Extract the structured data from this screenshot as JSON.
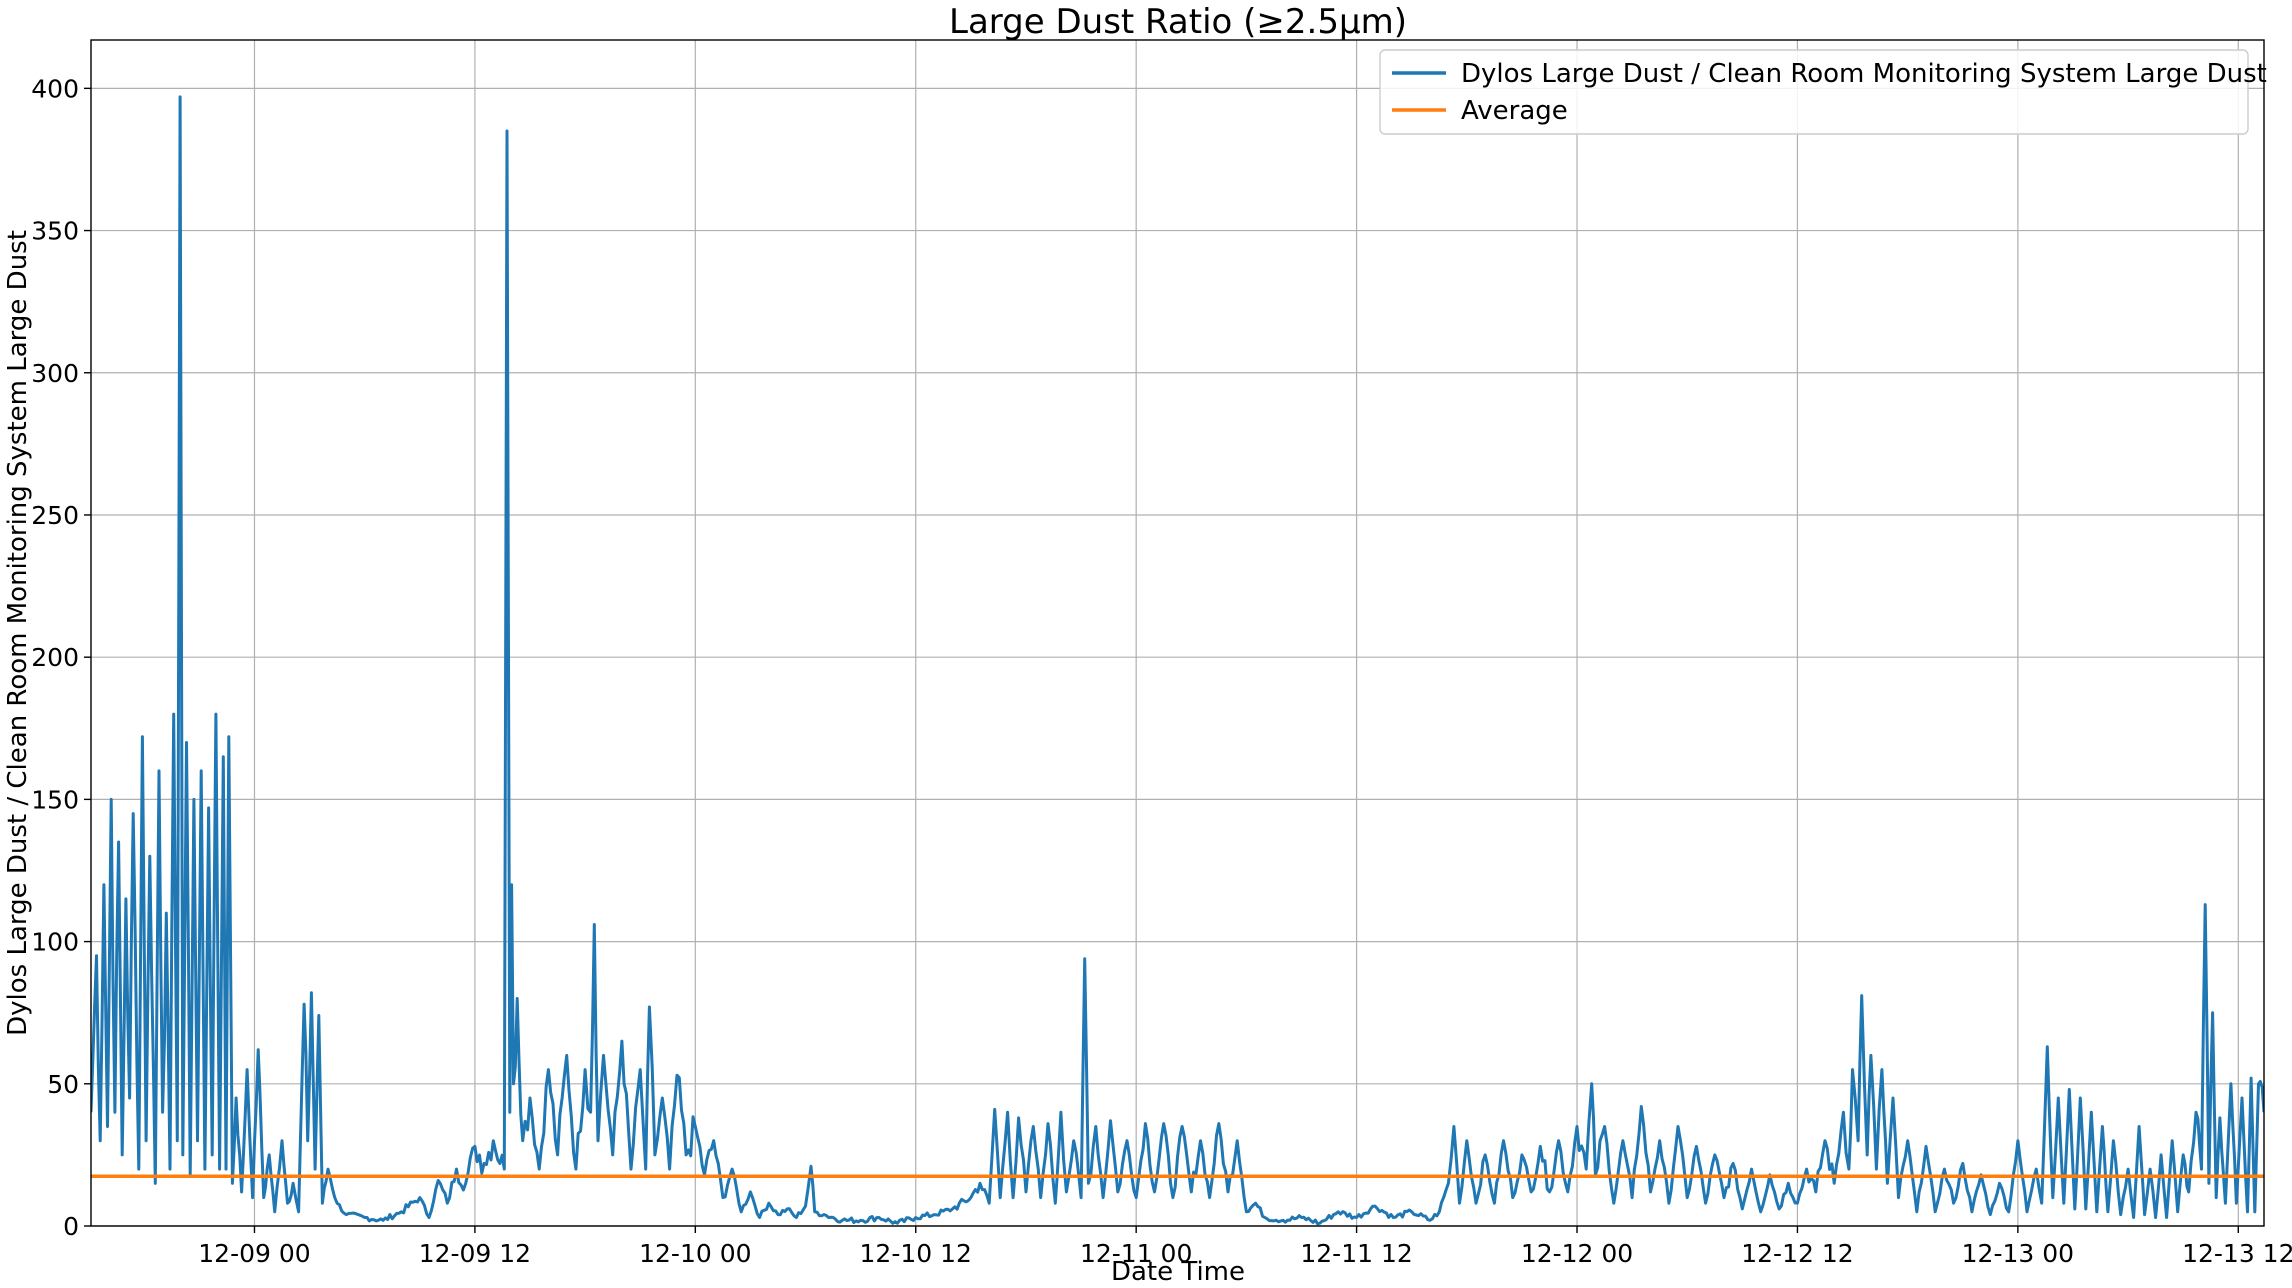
{
  "chart_data": {
    "type": "line",
    "title": "Large Dust Ratio (≥2.5µm)",
    "xlabel": "Date Time",
    "ylabel": "Dylos Large Dust / Clean Room Monitoring System Large Dust",
    "x_ticks": [
      "12-09 00",
      "12-09 12",
      "12-10 00",
      "12-10 12",
      "12-11 00",
      "12-11 12",
      "12-12 00",
      "12-12 12",
      "12-13 00",
      "12-13 12"
    ],
    "x_tick_hours": [
      24,
      36,
      48,
      60,
      72,
      84,
      96,
      108,
      120,
      132
    ],
    "y_ticks": [
      0,
      50,
      100,
      150,
      200,
      250,
      300,
      350,
      400
    ],
    "xlim_hours": [
      15.1,
      133.4
    ],
    "ylim": [
      0,
      417
    ],
    "grid": true,
    "legend_position": "top-right",
    "legend": [
      "Dylos Large Dust / Clean Room Monitoring System Large Dust",
      "Average"
    ],
    "colors": {
      "ratio": "#1f77b4",
      "average": "#ff7f0e"
    },
    "series": [
      {
        "name": "Dylos Large Dust / Clean Room Monitoring System Large Dust",
        "key_points": [
          [
            15.1,
            40
          ],
          [
            15.4,
            95
          ],
          [
            15.6,
            30
          ],
          [
            15.8,
            120
          ],
          [
            16.0,
            35
          ],
          [
            16.2,
            150
          ],
          [
            16.4,
            40
          ],
          [
            16.6,
            135
          ],
          [
            16.8,
            25
          ],
          [
            17.0,
            115
          ],
          [
            17.2,
            45
          ],
          [
            17.4,
            145
          ],
          [
            17.7,
            20
          ],
          [
            17.9,
            172
          ],
          [
            18.1,
            30
          ],
          [
            18.3,
            130
          ],
          [
            18.6,
            15
          ],
          [
            18.8,
            160
          ],
          [
            19.0,
            40
          ],
          [
            19.2,
            110
          ],
          [
            19.4,
            20
          ],
          [
            19.6,
            180
          ],
          [
            19.8,
            30
          ],
          [
            19.95,
            397
          ],
          [
            20.1,
            25
          ],
          [
            20.3,
            170
          ],
          [
            20.5,
            18
          ],
          [
            20.7,
            150
          ],
          [
            20.9,
            30
          ],
          [
            21.1,
            160
          ],
          [
            21.3,
            20
          ],
          [
            21.5,
            147
          ],
          [
            21.7,
            25
          ],
          [
            21.9,
            180
          ],
          [
            22.1,
            20
          ],
          [
            22.3,
            165
          ],
          [
            22.45,
            20
          ],
          [
            22.6,
            172
          ],
          [
            22.8,
            15
          ],
          [
            23.0,
            45
          ],
          [
            23.3,
            12
          ],
          [
            23.6,
            55
          ],
          [
            23.9,
            10
          ],
          [
            24.2,
            62
          ],
          [
            24.5,
            10
          ],
          [
            24.8,
            25
          ],
          [
            25.1,
            5
          ],
          [
            25.5,
            30
          ],
          [
            25.8,
            8
          ],
          [
            26.1,
            15
          ],
          [
            26.4,
            5
          ],
          [
            26.7,
            78
          ],
          [
            26.9,
            30
          ],
          [
            27.1,
            82
          ],
          [
            27.3,
            20
          ],
          [
            27.5,
            74
          ],
          [
            27.7,
            8
          ],
          [
            28.0,
            20
          ],
          [
            28.5,
            8
          ],
          [
            29.0,
            4
          ],
          [
            30.0,
            3
          ],
          [
            31.0,
            2
          ],
          [
            32.0,
            5
          ],
          [
            33.0,
            10
          ],
          [
            33.5,
            3
          ],
          [
            34.0,
            16
          ],
          [
            34.5,
            8
          ],
          [
            35.0,
            20
          ],
          [
            35.5,
            15
          ],
          [
            36.0,
            28
          ],
          [
            36.5,
            22
          ],
          [
            37.0,
            30
          ],
          [
            37.6,
            20
          ],
          [
            37.75,
            385
          ],
          [
            37.9,
            40
          ],
          [
            38.0,
            120
          ],
          [
            38.1,
            50
          ],
          [
            38.3,
            80
          ],
          [
            38.6,
            30
          ],
          [
            39.0,
            45
          ],
          [
            39.5,
            20
          ],
          [
            40.0,
            55
          ],
          [
            40.5,
            25
          ],
          [
            41.0,
            60
          ],
          [
            41.5,
            20
          ],
          [
            42.0,
            55
          ],
          [
            42.3,
            40
          ],
          [
            42.5,
            106
          ],
          [
            42.7,
            30
          ],
          [
            43.0,
            60
          ],
          [
            43.5,
            25
          ],
          [
            44.0,
            65
          ],
          [
            44.5,
            20
          ],
          [
            45.0,
            55
          ],
          [
            45.3,
            20
          ],
          [
            45.5,
            77
          ],
          [
            45.8,
            25
          ],
          [
            46.2,
            45
          ],
          [
            46.6,
            20
          ],
          [
            47.0,
            53
          ],
          [
            47.5,
            25
          ],
          [
            48.0,
            35
          ],
          [
            48.5,
            18
          ],
          [
            49.0,
            30
          ],
          [
            49.5,
            10
          ],
          [
            50.0,
            20
          ],
          [
            50.5,
            5
          ],
          [
            51.0,
            12
          ],
          [
            51.5,
            3
          ],
          [
            52.0,
            8
          ],
          [
            52.5,
            4
          ],
          [
            53.0,
            6
          ],
          [
            53.5,
            3
          ],
          [
            54.0,
            7
          ],
          [
            54.3,
            21
          ],
          [
            54.5,
            5
          ],
          [
            55.0,
            4
          ],
          [
            56.0,
            2
          ],
          [
            57.0,
            2
          ],
          [
            58.0,
            3
          ],
          [
            59.0,
            1
          ],
          [
            60.0,
            3
          ],
          [
            61.0,
            4
          ],
          [
            62.0,
            6
          ],
          [
            63.0,
            10
          ],
          [
            63.5,
            15
          ],
          [
            64.0,
            8
          ],
          [
            64.3,
            41
          ],
          [
            64.6,
            10
          ],
          [
            65.0,
            40
          ],
          [
            65.3,
            10
          ],
          [
            65.6,
            38
          ],
          [
            66.0,
            12
          ],
          [
            66.4,
            35
          ],
          [
            66.8,
            10
          ],
          [
            67.2,
            36
          ],
          [
            67.6,
            8
          ],
          [
            67.9,
            40
          ],
          [
            68.2,
            12
          ],
          [
            68.6,
            30
          ],
          [
            69.0,
            10
          ],
          [
            69.2,
            94
          ],
          [
            69.4,
            15
          ],
          [
            69.8,
            35
          ],
          [
            70.2,
            10
          ],
          [
            70.6,
            37
          ],
          [
            71.0,
            12
          ],
          [
            71.5,
            30
          ],
          [
            72.0,
            10
          ],
          [
            72.5,
            36
          ],
          [
            73.0,
            12
          ],
          [
            73.5,
            36
          ],
          [
            74.0,
            10
          ],
          [
            74.5,
            35
          ],
          [
            75.0,
            12
          ],
          [
            75.5,
            30
          ],
          [
            76.0,
            10
          ],
          [
            76.5,
            36
          ],
          [
            77.0,
            12
          ],
          [
            77.5,
            30
          ],
          [
            78.0,
            5
          ],
          [
            78.5,
            8
          ],
          [
            79.0,
            3
          ],
          [
            80.0,
            2
          ],
          [
            81.0,
            3
          ],
          [
            82.0,
            1
          ],
          [
            83.0,
            5
          ],
          [
            84.0,
            3
          ],
          [
            85.0,
            7
          ],
          [
            86.0,
            3
          ],
          [
            87.0,
            5
          ],
          [
            88.0,
            2
          ],
          [
            88.5,
            5
          ],
          [
            89.0,
            15
          ],
          [
            89.3,
            35
          ],
          [
            89.6,
            8
          ],
          [
            90.0,
            30
          ],
          [
            90.5,
            8
          ],
          [
            91.0,
            25
          ],
          [
            91.5,
            8
          ],
          [
            92.0,
            30
          ],
          [
            92.5,
            10
          ],
          [
            93.0,
            25
          ],
          [
            93.5,
            12
          ],
          [
            94.0,
            28
          ],
          [
            94.5,
            12
          ],
          [
            95.0,
            30
          ],
          [
            95.5,
            12
          ],
          [
            96.0,
            35
          ],
          [
            96.5,
            20
          ],
          [
            96.8,
            50
          ],
          [
            97.0,
            18
          ],
          [
            97.5,
            35
          ],
          [
            98.0,
            8
          ],
          [
            98.5,
            30
          ],
          [
            99.0,
            10
          ],
          [
            99.5,
            42
          ],
          [
            100.0,
            12
          ],
          [
            100.5,
            30
          ],
          [
            101.0,
            8
          ],
          [
            101.5,
            35
          ],
          [
            102.0,
            10
          ],
          [
            102.5,
            28
          ],
          [
            103.0,
            8
          ],
          [
            103.5,
            25
          ],
          [
            104.0,
            10
          ],
          [
            104.5,
            22
          ],
          [
            105.0,
            6
          ],
          [
            105.5,
            20
          ],
          [
            106.0,
            5
          ],
          [
            106.5,
            18
          ],
          [
            107.0,
            6
          ],
          [
            107.5,
            15
          ],
          [
            108.0,
            8
          ],
          [
            108.5,
            20
          ],
          [
            109.0,
            12
          ],
          [
            109.5,
            30
          ],
          [
            110.0,
            15
          ],
          [
            110.5,
            40
          ],
          [
            110.8,
            20
          ],
          [
            111.0,
            55
          ],
          [
            111.3,
            30
          ],
          [
            111.5,
            81
          ],
          [
            111.8,
            25
          ],
          [
            112.0,
            60
          ],
          [
            112.3,
            20
          ],
          [
            112.6,
            55
          ],
          [
            112.9,
            15
          ],
          [
            113.2,
            45
          ],
          [
            113.5,
            10
          ],
          [
            114.0,
            30
          ],
          [
            114.5,
            5
          ],
          [
            115.0,
            28
          ],
          [
            115.5,
            5
          ],
          [
            116.0,
            20
          ],
          [
            116.5,
            8
          ],
          [
            117.0,
            22
          ],
          [
            117.5,
            5
          ],
          [
            118.0,
            18
          ],
          [
            118.5,
            4
          ],
          [
            119.0,
            15
          ],
          [
            119.5,
            5
          ],
          [
            120.0,
            30
          ],
          [
            120.5,
            5
          ],
          [
            121.0,
            20
          ],
          [
            121.3,
            8
          ],
          [
            121.6,
            63
          ],
          [
            121.9,
            10
          ],
          [
            122.2,
            45
          ],
          [
            122.5,
            8
          ],
          [
            122.8,
            48
          ],
          [
            123.1,
            6
          ],
          [
            123.4,
            45
          ],
          [
            123.7,
            6
          ],
          [
            124.0,
            40
          ],
          [
            124.3,
            5
          ],
          [
            124.6,
            35
          ],
          [
            124.9,
            5
          ],
          [
            125.2,
            30
          ],
          [
            125.6,
            4
          ],
          [
            126.0,
            20
          ],
          [
            126.3,
            3
          ],
          [
            126.6,
            35
          ],
          [
            126.9,
            4
          ],
          [
            127.2,
            20
          ],
          [
            127.5,
            3
          ],
          [
            127.8,
            25
          ],
          [
            128.1,
            3
          ],
          [
            128.4,
            30
          ],
          [
            128.7,
            5
          ],
          [
            129.0,
            25
          ],
          [
            129.3,
            12
          ],
          [
            129.7,
            40
          ],
          [
            130.0,
            20
          ],
          [
            130.2,
            113
          ],
          [
            130.4,
            15
          ],
          [
            130.6,
            75
          ],
          [
            130.8,
            10
          ],
          [
            131.0,
            38
          ],
          [
            131.3,
            8
          ],
          [
            131.6,
            50
          ],
          [
            131.9,
            8
          ],
          [
            132.2,
            45
          ],
          [
            132.5,
            5
          ],
          [
            132.7,
            52
          ],
          [
            132.9,
            5
          ],
          [
            133.1,
            50
          ],
          [
            133.4,
            40
          ]
        ]
      },
      {
        "name": "Average",
        "value": 17.5
      }
    ]
  }
}
